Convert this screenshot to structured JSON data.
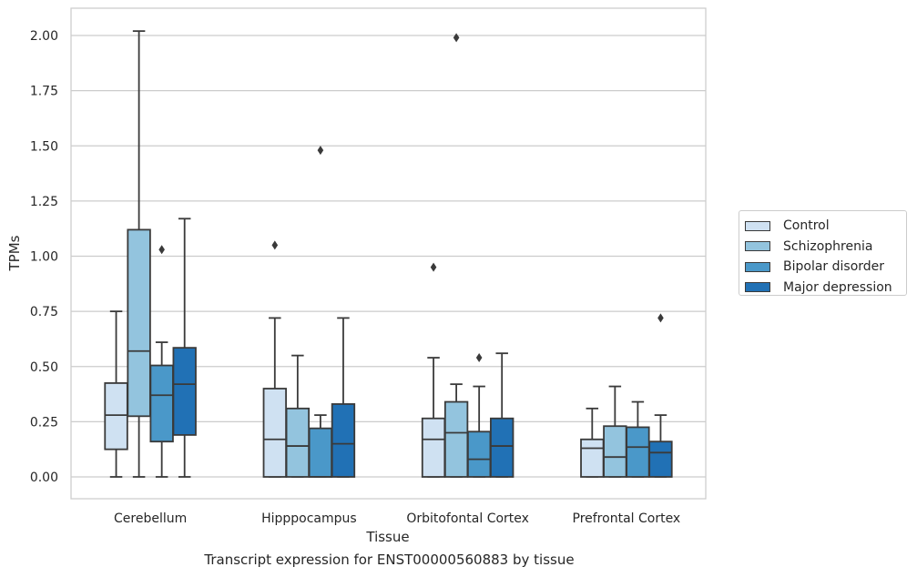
{
  "chart_data": {
    "type": "box",
    "title": "",
    "caption": "Transcript expression for ENST00000560883 by tissue",
    "xlabel": "Tissue",
    "ylabel": "TPMs",
    "ylim": [
      -0.1,
      2.12
    ],
    "yticks": [
      "0.00",
      "0.25",
      "0.50",
      "0.75",
      "1.00",
      "1.25",
      "1.50",
      "1.75",
      "2.00"
    ],
    "ytick_values": [
      0,
      0.25,
      0.5,
      0.75,
      1.0,
      1.25,
      1.5,
      1.75,
      2.0
    ],
    "grid": "horizontal",
    "legend_position": "right",
    "categories": [
      "Cerebellum",
      "Hipppocampus",
      "Orbitofontal Cortex",
      "Prefrontal Cortex"
    ],
    "series": [
      {
        "name": "Control",
        "color": "#cfe1f2",
        "boxes": [
          {
            "min": 0.0,
            "q1": 0.125,
            "median": 0.28,
            "q3": 0.425,
            "max": 0.75,
            "outliers": []
          },
          {
            "min": 0.0,
            "q1": 0.0,
            "median": 0.17,
            "q3": 0.4,
            "max": 0.72,
            "outliers": [
              1.05
            ]
          },
          {
            "min": 0.0,
            "q1": 0.0,
            "median": 0.17,
            "q3": 0.265,
            "max": 0.54,
            "outliers": [
              0.95
            ]
          },
          {
            "min": 0.0,
            "q1": 0.0,
            "median": 0.13,
            "q3": 0.17,
            "max": 0.31,
            "outliers": []
          }
        ]
      },
      {
        "name": "Schizophrenia",
        "color": "#93c4de",
        "boxes": [
          {
            "min": 0.0,
            "q1": 0.275,
            "median": 0.57,
            "q3": 1.12,
            "max": 2.02,
            "outliers": []
          },
          {
            "min": 0.0,
            "q1": 0.0,
            "median": 0.14,
            "q3": 0.31,
            "max": 0.55,
            "outliers": []
          },
          {
            "min": 0.0,
            "q1": 0.0,
            "median": 0.2,
            "q3": 0.34,
            "max": 0.42,
            "outliers": [
              1.99
            ]
          },
          {
            "min": 0.0,
            "q1": 0.0,
            "median": 0.09,
            "q3": 0.23,
            "max": 0.41,
            "outliers": []
          }
        ]
      },
      {
        "name": "Bipolar disorder",
        "color": "#4a98c9",
        "boxes": [
          {
            "min": 0.0,
            "q1": 0.16,
            "median": 0.37,
            "q3": 0.505,
            "max": 0.61,
            "outliers": [
              1.03
            ]
          },
          {
            "min": 0.0,
            "q1": 0.0,
            "median": 0.0,
            "q3": 0.22,
            "max": 0.28,
            "outliers": [
              1.48
            ]
          },
          {
            "min": 0.0,
            "q1": 0.0,
            "median": 0.08,
            "q3": 0.205,
            "max": 0.41,
            "outliers": [
              0.54
            ]
          },
          {
            "min": 0.0,
            "q1": 0.0,
            "median": 0.135,
            "q3": 0.225,
            "max": 0.34,
            "outliers": []
          }
        ]
      },
      {
        "name": "Major depression",
        "color": "#2171b5",
        "boxes": [
          {
            "min": 0.0,
            "q1": 0.19,
            "median": 0.42,
            "q3": 0.585,
            "max": 1.17,
            "outliers": []
          },
          {
            "min": 0.0,
            "q1": 0.0,
            "median": 0.15,
            "q3": 0.33,
            "max": 0.72,
            "outliers": []
          },
          {
            "min": 0.0,
            "q1": 0.0,
            "median": 0.14,
            "q3": 0.265,
            "max": 0.56,
            "outliers": []
          },
          {
            "min": 0.0,
            "q1": 0.0,
            "median": 0.11,
            "q3": 0.16,
            "max": 0.28,
            "outliers": [
              0.72
            ]
          }
        ]
      }
    ]
  }
}
